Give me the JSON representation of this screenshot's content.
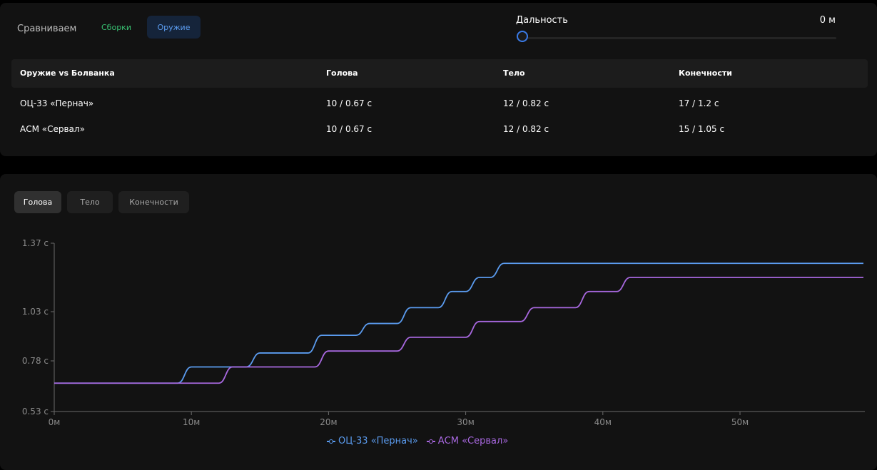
{
  "header": {
    "compare_label": "Сравниваем",
    "tabs": [
      {
        "label": "Сборки",
        "active": false
      },
      {
        "label": "Оружие",
        "active": true
      }
    ],
    "range_label": "Дальность",
    "range_value": "0 м",
    "range_slider_value": 0
  },
  "table": {
    "columns": [
      "Оружие vs Болванка",
      "Голова",
      "Тело",
      "Конечности"
    ],
    "rows": [
      [
        "ОЦ-33 «Пернач»",
        "10 / 0.67 с",
        "12 / 0.82 с",
        "17 / 1.2 с"
      ],
      [
        "АСМ «Сервал»",
        "10 / 0.67 с",
        "12 / 0.82 с",
        "15 / 1.05 с"
      ]
    ]
  },
  "chart_tabs": [
    {
      "label": "Голова",
      "active": true
    },
    {
      "label": "Тело",
      "active": false
    },
    {
      "label": "Конечности",
      "active": false
    }
  ],
  "colors": {
    "accent_blue": "#5b9cf0",
    "accent_green": "#38c172",
    "series_1": "#5b9cf0",
    "series_2": "#a868e0"
  },
  "chart_data": {
    "type": "line",
    "title": "",
    "xlabel": "",
    "ylabel": "",
    "x_ticks": [
      "0м",
      "10м",
      "20м",
      "30м",
      "40м",
      "50м"
    ],
    "y_ticks": [
      "0.53 с",
      "0.78 с",
      "1.03 с",
      "1.37 с"
    ],
    "y_tick_values": [
      0.53,
      0.78,
      1.03,
      1.37
    ],
    "xlim": [
      0,
      59
    ],
    "ylim": [
      0.53,
      1.37
    ],
    "legend_position": "bottom",
    "series": [
      {
        "name": "ОЦ-33 «Пернач»",
        "x": [
          0,
          9,
          10,
          14,
          15,
          18.5,
          19.5,
          22,
          23,
          25,
          26,
          28,
          29,
          30,
          31,
          31.8,
          32.8,
          59
        ],
        "y": [
          0.67,
          0.67,
          0.75,
          0.75,
          0.82,
          0.82,
          0.91,
          0.91,
          0.97,
          0.97,
          1.05,
          1.05,
          1.13,
          1.13,
          1.2,
          1.2,
          1.27,
          1.27
        ]
      },
      {
        "name": "АСМ «Сервал»",
        "x": [
          0,
          12,
          13,
          19,
          20,
          25,
          26,
          30,
          31,
          34,
          35,
          38,
          39,
          41,
          42,
          59
        ],
        "y": [
          0.67,
          0.67,
          0.75,
          0.75,
          0.83,
          0.83,
          0.9,
          0.9,
          0.98,
          0.98,
          1.05,
          1.05,
          1.13,
          1.13,
          1.2,
          1.2
        ]
      }
    ]
  }
}
